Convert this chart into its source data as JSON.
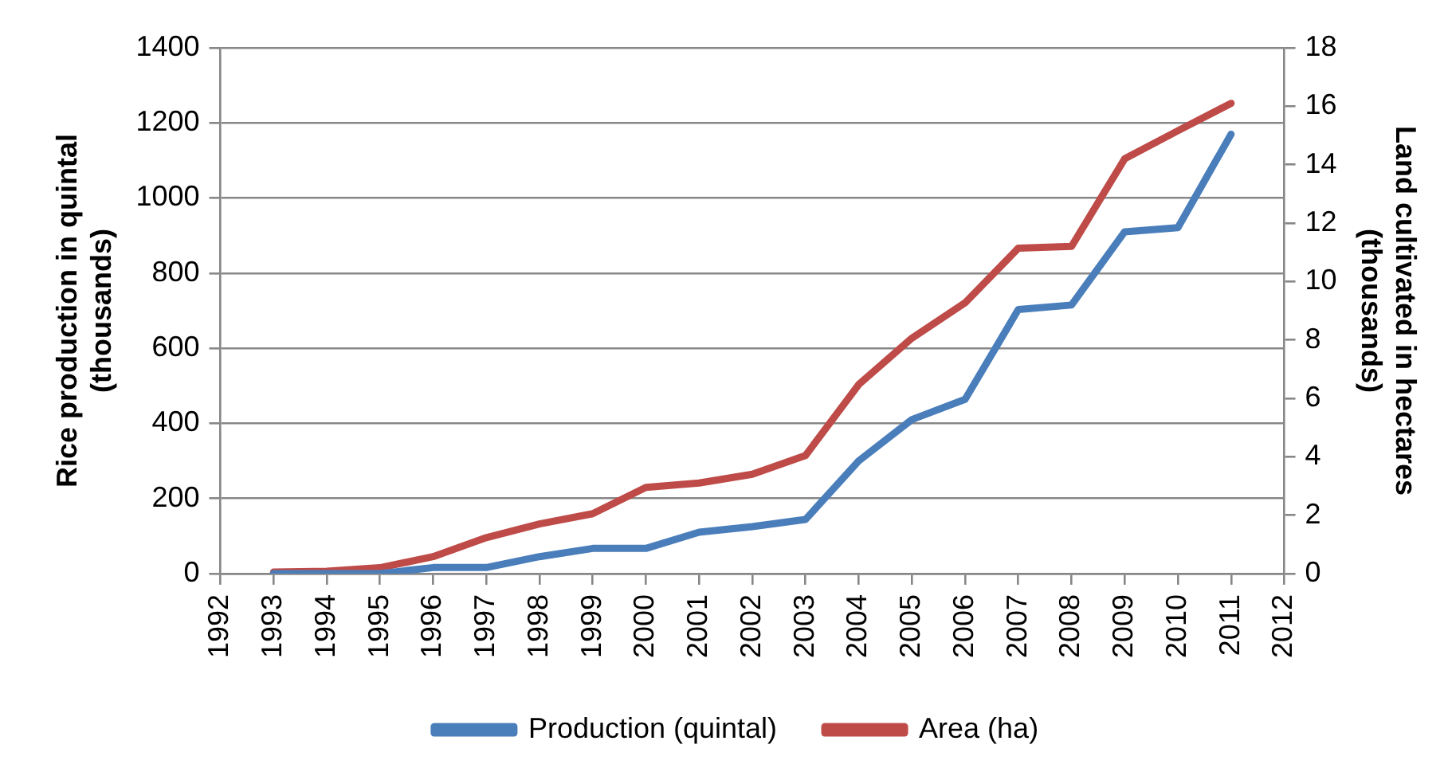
{
  "chart_data": {
    "type": "line",
    "ylabel": "Rice production in quintal (thousands)",
    "y2label": "Land cultivated in hectares (thousands)",
    "x": [
      1993,
      1994,
      1995,
      1996,
      1997,
      1998,
      1999,
      2000,
      2001,
      2002,
      2003,
      2004,
      2005,
      2006,
      2007,
      2008,
      2009,
      2010,
      2011
    ],
    "xlim": [
      1992,
      2012
    ],
    "xticks": [
      1992,
      1993,
      1994,
      1995,
      1996,
      1997,
      1998,
      1999,
      2000,
      2001,
      2002,
      2003,
      2004,
      2005,
      2006,
      2007,
      2008,
      2009,
      2010,
      2011,
      2012
    ],
    "ylim": [
      0,
      1400
    ],
    "yticks": [
      0,
      200,
      400,
      600,
      800,
      1000,
      1200,
      1400
    ],
    "y2lim": [
      0,
      18
    ],
    "y2ticks": [
      0,
      2,
      4,
      6,
      8,
      10,
      12,
      14,
      16,
      18
    ],
    "series": [
      {
        "name": "Production (quintal)",
        "color": "#4a7ebb",
        "values": [
          0,
          0,
          0,
          16,
          16,
          45,
          67,
          67,
          110,
          125,
          144,
          300,
          410,
          464,
          703,
          715,
          910,
          921,
          1170
        ]
      },
      {
        "name": "Area (ha)",
        "color": "#be4b48",
        "axis": "y2",
        "values": [
          0.05,
          0.08,
          0.2,
          0.58,
          1.23,
          1.7,
          2.05,
          2.95,
          3.1,
          3.4,
          4.04,
          6.47,
          8.06,
          9.27,
          11.14,
          11.2,
          14.2,
          15.16,
          16.1
        ]
      }
    ],
    "grid": "y",
    "legend": "bottom",
    "marker": "none",
    "line_style": "solid"
  }
}
